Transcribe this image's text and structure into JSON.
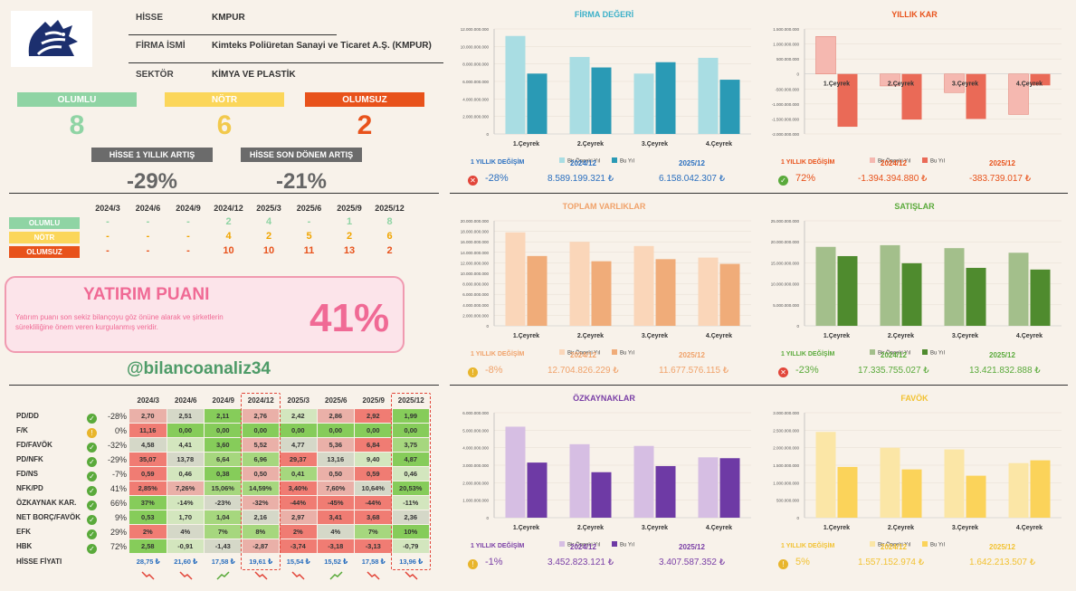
{
  "info": {
    "rows": [
      {
        "label": "HİSSE",
        "value": "KMPUR"
      },
      {
        "label": "FİRMA İSMİ",
        "value": "Kimteks Poliüretan Sanayi ve Ticaret A.Ş. (KMPUR)"
      },
      {
        "label": "SEKTÖR",
        "value": "KİMYA VE PLASTİK"
      }
    ]
  },
  "counts": [
    {
      "label": "OLUMLU",
      "value": "8",
      "color": "#8fd4a4",
      "text_color": "#8fd4a4"
    },
    {
      "label": "NÖTR",
      "value": "6",
      "color": "#fbd65a",
      "text_color": "#f2c94c"
    },
    {
      "label": "OLUMSUZ",
      "value": "2",
      "color": "#e8521b",
      "text_color": "#e8521b"
    }
  ],
  "changes": [
    {
      "label": "HİSSE 1 YILLIK ARTIŞ",
      "value": "-29%"
    },
    {
      "label": "HİSSE SON DÖNEM ARTIŞ",
      "value": "-21%"
    }
  ],
  "quarters": [
    "2024/3",
    "2024/6",
    "2024/9",
    "2024/12",
    "2025/3",
    "2025/6",
    "2025/9",
    "2025/12"
  ],
  "qcounts": [
    {
      "label": "OLUMLU",
      "color": "#8fd4a4",
      "text_color": "#8fd4a4",
      "values": [
        "-",
        "-",
        "-",
        "2",
        "4",
        "-",
        "1",
        "8"
      ]
    },
    {
      "label": "NÖTR",
      "color": "#fbd65a",
      "text_color": "#f0a500",
      "values": [
        "-",
        "-",
        "-",
        "4",
        "2",
        "5",
        "2",
        "6"
      ]
    },
    {
      "label": "OLUMSUZ",
      "color": "#e8521b",
      "text_color": "#e8521b",
      "values": [
        "-",
        "-",
        "-",
        "10",
        "10",
        "11",
        "13",
        "2"
      ]
    }
  ],
  "score": {
    "title": "YATIRIM PUANI",
    "desc": "Yatırım puanı son sekiz bilançoyu göz önüne alarak ve şirketlerin sürekliliğine önem veren kurgulanmış veridir.",
    "value": "41%"
  },
  "handle": "@bilancoanaliz34",
  "ratios": {
    "headers": [
      "2024/3",
      "2024/6",
      "2024/9",
      "2024/12",
      "2025/3",
      "2025/6",
      "2025/9",
      "2025/12"
    ],
    "rows": [
      {
        "name": "PD/DD",
        "icon": "ok",
        "chg": "-28%",
        "vals": [
          "2,70",
          "2,51",
          "2,11",
          "2,76",
          "2,42",
          "2,86",
          "2,92",
          "1,99"
        ],
        "colors": [
          "#eab0a8",
          "#d5d8c8",
          "#86cc5a",
          "#eab0a8",
          "#d3e6be",
          "#eab0a8",
          "#f07c73",
          "#86cc5a"
        ]
      },
      {
        "name": "F/K",
        "icon": "warn",
        "chg": "0%",
        "vals": [
          "11,16",
          "0,00",
          "0,00",
          "0,00",
          "0,00",
          "0,00",
          "0,00",
          "0,00"
        ],
        "colors": [
          "#f07c73",
          "#86cc5a",
          "#86cc5a",
          "#86cc5a",
          "#86cc5a",
          "#86cc5a",
          "#86cc5a",
          "#86cc5a"
        ]
      },
      {
        "name": "FD/FAVÖK",
        "icon": "ok",
        "chg": "-32%",
        "vals": [
          "4,58",
          "4,41",
          "3,60",
          "5,52",
          "4,77",
          "5,36",
          "6,84",
          "3,75"
        ],
        "colors": [
          "#d5d8c8",
          "#d3e6be",
          "#86cc5a",
          "#eab0a8",
          "#d5d8c8",
          "#eab0a8",
          "#f07c73",
          "#a6d77e"
        ]
      },
      {
        "name": "PD/NFK",
        "icon": "ok",
        "chg": "-29%",
        "vals": [
          "35,07",
          "13,78",
          "6,64",
          "6,96",
          "29,37",
          "13,16",
          "9,40",
          "4,87"
        ],
        "colors": [
          "#f07c73",
          "#d5d8c8",
          "#a6d77e",
          "#a6d77e",
          "#f07c73",
          "#d5d8c8",
          "#d3e6be",
          "#86cc5a"
        ]
      },
      {
        "name": "FD/NS",
        "icon": "ok",
        "chg": "-7%",
        "vals": [
          "0,59",
          "0,46",
          "0,38",
          "0,50",
          "0,41",
          "0,50",
          "0,59",
          "0,46"
        ],
        "colors": [
          "#f07c73",
          "#d3e6be",
          "#86cc5a",
          "#eab0a8",
          "#a6d77e",
          "#eab0a8",
          "#f07c73",
          "#d3e6be"
        ]
      },
      {
        "name": "NFK/PD",
        "icon": "ok",
        "chg": "41%",
        "vals": [
          "2,85%",
          "7,26%",
          "15,06%",
          "14,59%",
          "3,40%",
          "7,60%",
          "10,64%",
          "20,53%"
        ],
        "colors": [
          "#f07c73",
          "#eab0a8",
          "#a6d77e",
          "#a6d77e",
          "#f07c73",
          "#eab0a8",
          "#d5d8c8",
          "#86cc5a"
        ]
      },
      {
        "name": "ÖZKAYNAK KAR.",
        "icon": "ok",
        "chg": "66%",
        "vals": [
          "37%",
          "-14%",
          "-23%",
          "-32%",
          "-44%",
          "-45%",
          "-44%",
          "-11%"
        ],
        "colors": [
          "#86cc5a",
          "#d3e6be",
          "#d5d8c8",
          "#eab0a8",
          "#f07c73",
          "#f07c73",
          "#f07c73",
          "#d3e6be"
        ]
      },
      {
        "name": "NET BORÇ/FAVÖK",
        "icon": "ok",
        "chg": "9%",
        "vals": [
          "0,53",
          "1,70",
          "1,04",
          "2,16",
          "2,97",
          "3,41",
          "3,68",
          "2,36"
        ],
        "colors": [
          "#86cc5a",
          "#d3e6be",
          "#a6d77e",
          "#d5d8c8",
          "#eab0a8",
          "#f07c73",
          "#f07c73",
          "#d5d8c8"
        ]
      },
      {
        "name": "EFK",
        "icon": "ok",
        "chg": "29%",
        "vals": [
          "2%",
          "4%",
          "7%",
          "8%",
          "2%",
          "4%",
          "7%",
          "10%"
        ],
        "colors": [
          "#f07c73",
          "#d5d8c8",
          "#a6d77e",
          "#a6d77e",
          "#f07c73",
          "#d5d8c8",
          "#a6d77e",
          "#86cc5a"
        ]
      },
      {
        "name": "HBK",
        "icon": "ok",
        "chg": "72%",
        "vals": [
          "2,58",
          "-0,91",
          "-1,43",
          "-2,87",
          "-3,74",
          "-3,18",
          "-3,13",
          "-0,79"
        ],
        "colors": [
          "#86cc5a",
          "#d3e6be",
          "#d5d8c8",
          "#eab0a8",
          "#f07c73",
          "#f07c73",
          "#f07c73",
          "#d3e6be"
        ]
      }
    ],
    "price_label": "HİSSE FİYATI",
    "prices": [
      "28,75 ₺",
      "21,60 ₺",
      "17,58 ₺",
      "19,61 ₺",
      "15,54 ₺",
      "15,52 ₺",
      "17,58 ₺",
      "13,96 ₺"
    ],
    "trends": [
      "down",
      "down",
      "up",
      "down",
      "down",
      "up",
      "down",
      "down"
    ]
  },
  "chart_data": [
    {
      "type": "bar",
      "title": "FİRMA DEĞERİ",
      "categories": [
        "1.Çeyrek",
        "2.Çeyrek",
        "3.Çeyrek",
        "4.Çeyrek"
      ],
      "series": [
        {
          "name": "Bir Önceki Yıl",
          "values": [
            11200000000,
            8800000000,
            6900000000,
            8700000000
          ]
        },
        {
          "name": "Bu Yıl",
          "values": [
            6900000000,
            7600000000,
            8200000000,
            6200000000
          ]
        }
      ],
      "ylim": [
        0,
        12000000000
      ],
      "ticks": [
        "0",
        "2.000.000.000",
        "4.000.000.000",
        "6.000.000.000",
        "8.000.000.000",
        "10.000.000.000",
        "12.000.000.000"
      ],
      "colors": [
        "#a9dde3",
        "#2a9ab5"
      ],
      "title_color": "#3bb0c9"
    },
    {
      "type": "bar",
      "title": "YILLIK KAR",
      "categories": [
        "1.Çeyrek",
        "2.Çeyrek",
        "3.Çeyrek",
        "4.Çeyrek"
      ],
      "series": [
        {
          "name": "Bir Önceki Yıl",
          "values": [
            1250000000,
            -400000000,
            -620000000,
            -1350000000
          ]
        },
        {
          "name": "Bu Yıl",
          "values": [
            -1760000000,
            -1520000000,
            -1500000000,
            -380000000
          ]
        }
      ],
      "ylim": [
        -2000000000,
        1500000000
      ],
      "ticks": [
        "-2.000.000.000",
        "-1.500.000.000",
        "-1.000.000.000",
        "-500.000.000",
        "0",
        "500.000.000",
        "1.000.000.000",
        "1.500.000.000"
      ],
      "colors": [
        "#f5b8b0",
        "#ea6a57"
      ],
      "title_color": "#e8521b"
    },
    {
      "type": "bar",
      "title": "TOPLAM VARLIKLAR",
      "categories": [
        "1.Çeyrek",
        "2.Çeyrek",
        "3.Çeyrek",
        "4.Çeyrek"
      ],
      "series": [
        {
          "name": "Bir Önceki Yıl",
          "values": [
            17800000000,
            16000000000,
            15200000000,
            13000000000
          ]
        },
        {
          "name": "Bu Yıl",
          "values": [
            13300000000,
            12300000000,
            12700000000,
            11800000000
          ]
        }
      ],
      "ylim": [
        0,
        20000000000
      ],
      "ticks": [
        "0",
        "2.000.000.000",
        "4.000.000.000",
        "6.000.000.000",
        "8.000.000.000",
        "10.000.000.000",
        "12.000.000.000",
        "14.000.000.000",
        "16.000.000.000",
        "18.000.000.000",
        "20.000.000.000"
      ],
      "colors": [
        "#fad6b9",
        "#f0ac79"
      ],
      "title_color": "#f0a26a"
    },
    {
      "type": "bar",
      "title": "SATIŞLAR",
      "categories": [
        "1.Çeyrek",
        "2.Çeyrek",
        "3.Çeyrek",
        "4.Çeyrek"
      ],
      "series": [
        {
          "name": "Bir Önceki Yıl",
          "values": [
            18800000000,
            19200000000,
            18500000000,
            17400000000
          ]
        },
        {
          "name": "Bu Yıl",
          "values": [
            16600000000,
            14900000000,
            13800000000,
            13400000000
          ]
        }
      ],
      "ylim": [
        0,
        25000000000
      ],
      "ticks": [
        "0",
        "5.000.000.000",
        "10.000.000.000",
        "15.000.000.000",
        "20.000.000.000",
        "25.000.000.000"
      ],
      "colors": [
        "#a3bf8b",
        "#4f8b2e"
      ],
      "title_color": "#5aaa3b"
    },
    {
      "type": "bar",
      "title": "ÖZKAYNAKLAR",
      "categories": [
        "1.Çeyrek",
        "2.Çeyrek",
        "3.Çeyrek",
        "4.Çeyrek"
      ],
      "series": [
        {
          "name": "Bir Önceki Yıl",
          "values": [
            5200000000,
            4200000000,
            4100000000,
            3450000000
          ]
        },
        {
          "name": "Bu Yıl",
          "values": [
            3150000000,
            2600000000,
            2950000000,
            3400000000
          ]
        }
      ],
      "ylim": [
        0,
        6000000000
      ],
      "ticks": [
        "0",
        "1.000.000.000",
        "2.000.000.000",
        "3.000.000.000",
        "4.000.000.000",
        "5.000.000.000",
        "6.000.000.000"
      ],
      "colors": [
        "#d6bee3",
        "#6e3aa5"
      ],
      "title_color": "#7a3fa6"
    },
    {
      "type": "bar",
      "title": "FAVÖK",
      "categories": [
        "1.Çeyrek",
        "2.Çeyrek",
        "3.Çeyrek",
        "4.Çeyrek"
      ],
      "series": [
        {
          "name": "Bir Önceki Yıl",
          "values": [
            2450000000,
            2000000000,
            1950000000,
            1560000000
          ]
        },
        {
          "name": "Bu Yıl",
          "values": [
            1450000000,
            1380000000,
            1200000000,
            1640000000
          ]
        }
      ],
      "ylim": [
        0,
        3000000000
      ],
      "ticks": [
        "0",
        "500.000.000",
        "1.000.000.000",
        "1.500.000.000",
        "2.000.000.000",
        "2.500.000.000",
        "3.000.000.000"
      ],
      "colors": [
        "#fbe6a6",
        "#fbd35a"
      ],
      "title_color": "#f2c232"
    }
  ],
  "summaries": [
    {
      "label": "1 YILLIK DEĞİŞİM",
      "icon": "bad",
      "change": "-28%",
      "y1": "2024/12",
      "v1": "8.589.199.321 ₺",
      "y2": "2025/12",
      "v2": "6.158.042.307 ₺",
      "label_color": "#2a6fbf",
      "val_color": "#2a6fbf"
    },
    {
      "label": "1 YILLIK DEĞİŞİM",
      "icon": "ok",
      "change": "72%",
      "y1": "2024/12",
      "v1": "-1.394.394.880 ₺",
      "y2": "2025/12",
      "v2": "-383.739.017 ₺",
      "label_color": "#e8521b",
      "val_color": "#e8521b"
    },
    {
      "label": "1 YILLIK DEĞİŞİM",
      "icon": "warn",
      "change": "-8%",
      "y1": "2024/12",
      "v1": "12.704.826.229 ₺",
      "y2": "2025/12",
      "v2": "11.677.576.115 ₺",
      "label_color": "#f0a26a",
      "val_color": "#f0a26a"
    },
    {
      "label": "1 YILLIK DEĞİŞİM",
      "icon": "bad",
      "change": "-23%",
      "y1": "2024/12",
      "v1": "17.335.755.027 ₺",
      "y2": "2025/12",
      "v2": "13.421.832.888 ₺",
      "label_color": "#5aaa3b",
      "val_color": "#5aaa3b"
    },
    {
      "label": "1 YILLIK DEĞİŞİM",
      "icon": "warn",
      "change": "-1%",
      "y1": "2024/12",
      "v1": "3.452.823.121 ₺",
      "y2": "2025/12",
      "v2": "3.407.587.352 ₺",
      "label_color": "#7a3fa6",
      "val_color": "#7a3fa6"
    },
    {
      "label": "1 YILLIK DEĞİŞİM",
      "icon": "warn",
      "change": "5%",
      "y1": "2024/12",
      "v1": "1.557.152.974 ₺",
      "y2": "2025/12",
      "v2": "1.642.213.507 ₺",
      "label_color": "#f2c232",
      "val_color": "#f2c232"
    }
  ],
  "icons": {
    "ok": "check-circle-icon",
    "warn": "warning-circle-icon",
    "bad": "x-circle-icon",
    "up": "trend-up-icon",
    "down": "trend-down-icon"
  }
}
